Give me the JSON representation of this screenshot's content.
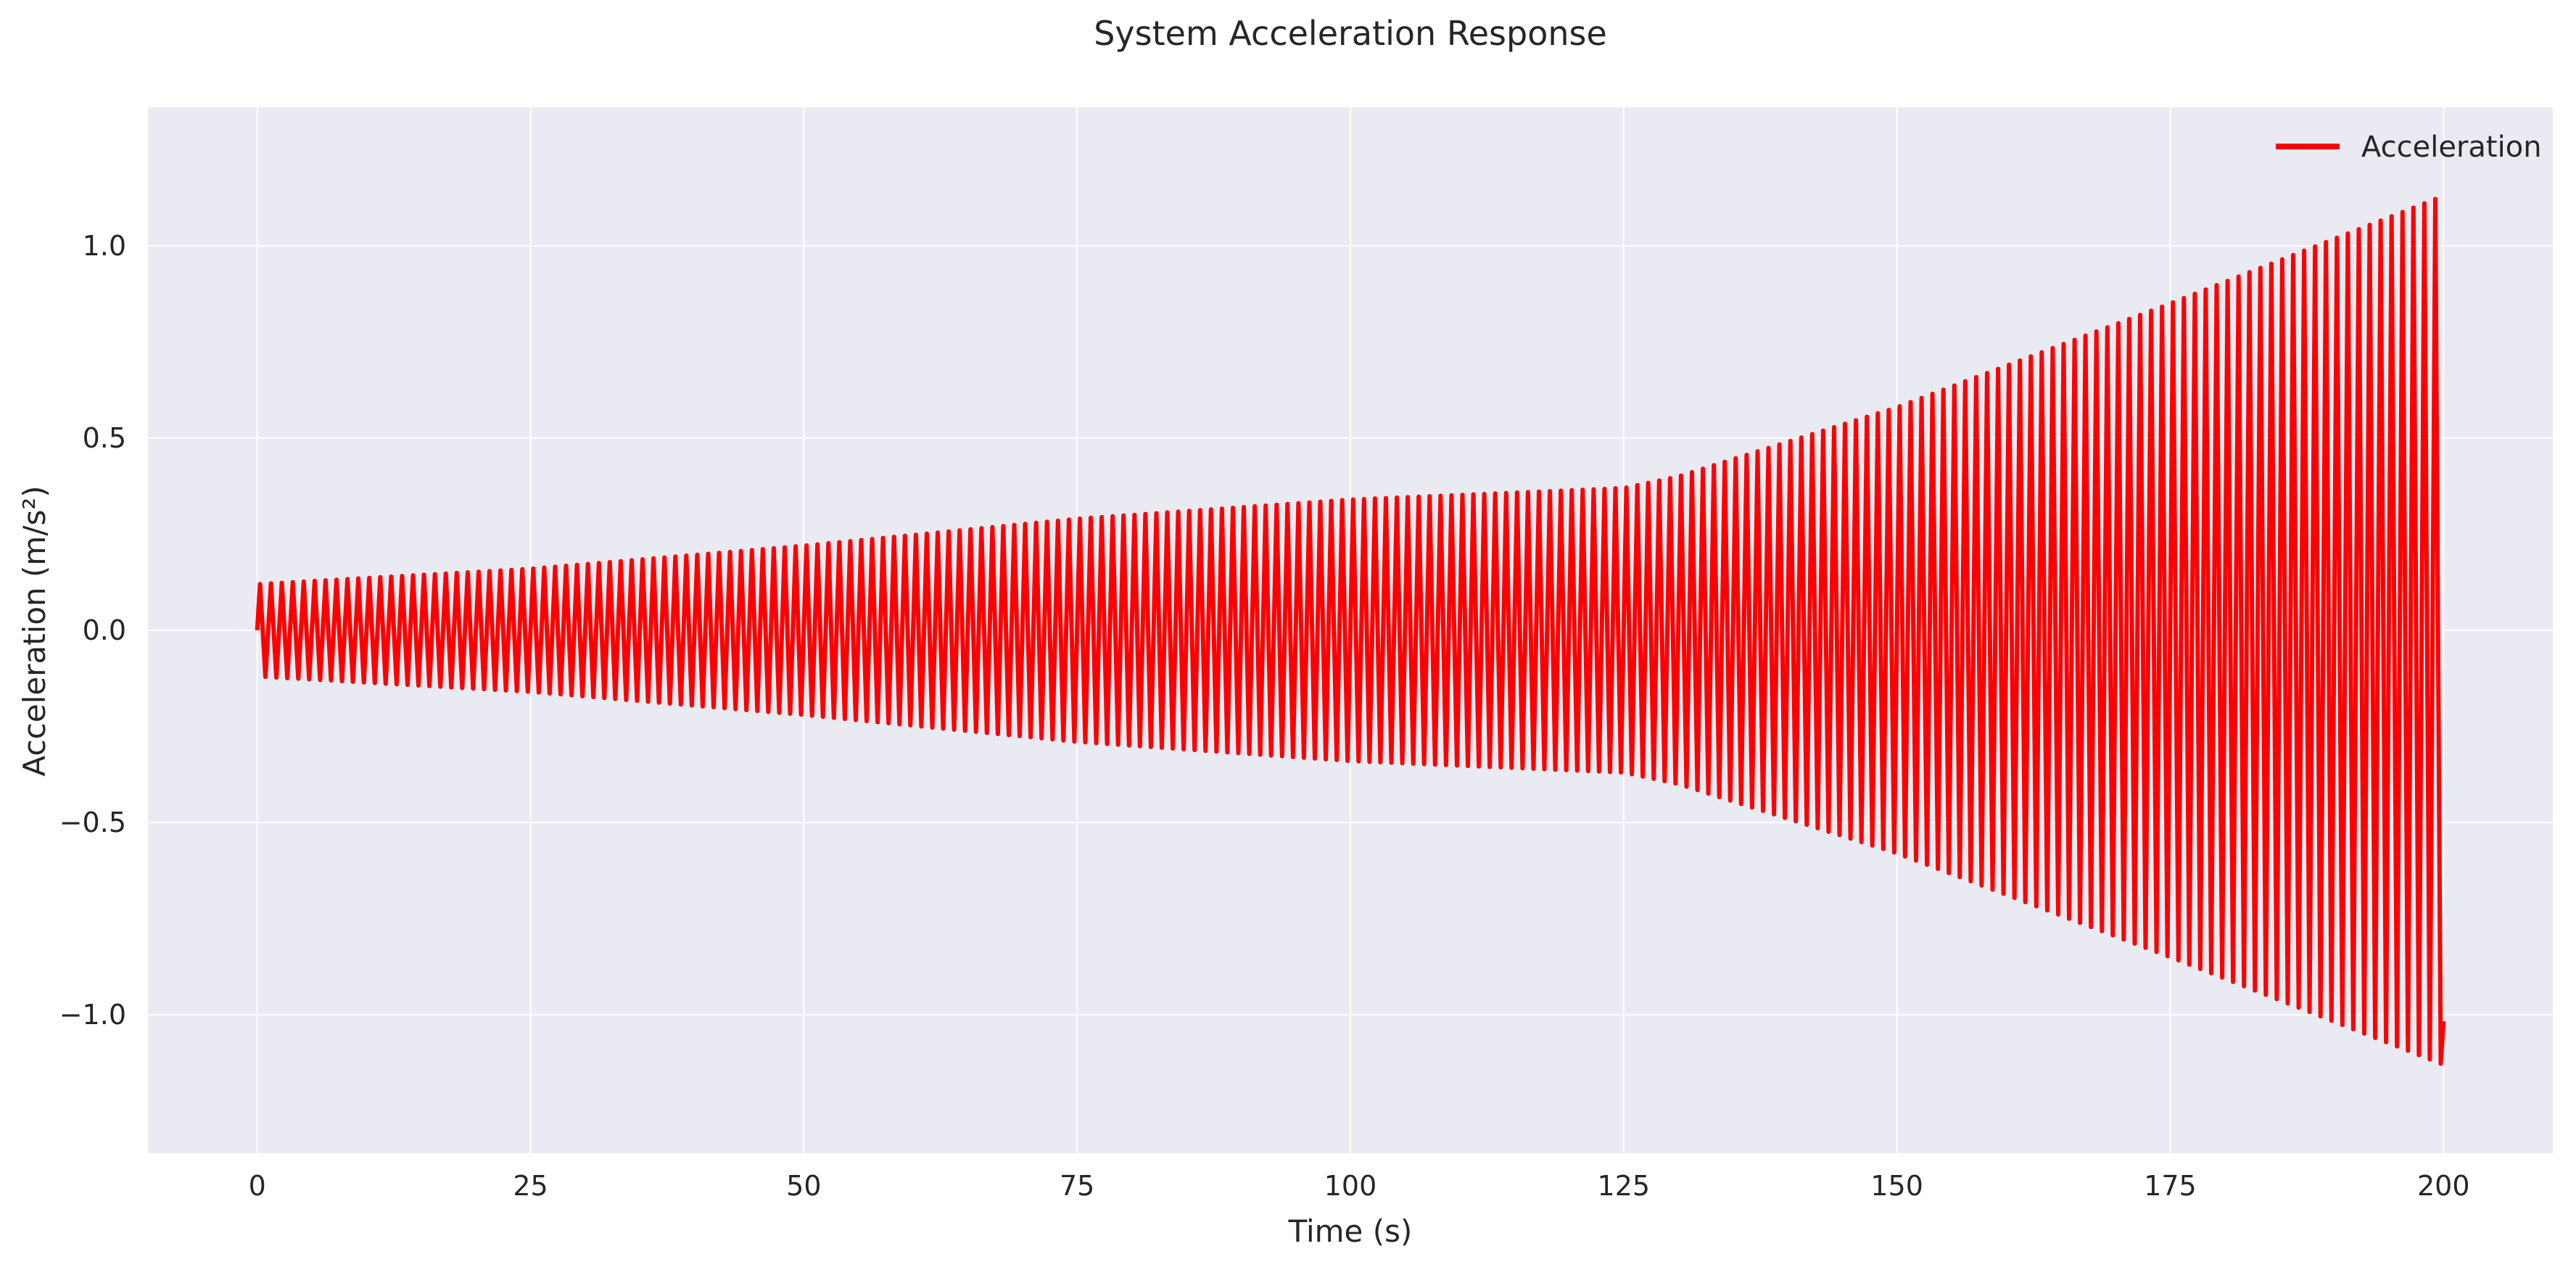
{
  "chart_data": {
    "type": "line",
    "title": "System Acceleration Response",
    "xlabel": "Time (s)",
    "ylabel": "Acceleration (m/s²)",
    "xlim": [
      -10,
      210
    ],
    "ylim": [
      -1.36,
      1.36
    ],
    "xticks": [
      0,
      25,
      50,
      75,
      100,
      125,
      150,
      175,
      200
    ],
    "xtick_labels": [
      "0",
      "25",
      "50",
      "75",
      "100",
      "125",
      "150",
      "175",
      "200"
    ],
    "yticks": [
      -1.0,
      -0.5,
      0.0,
      0.5,
      1.0
    ],
    "ytick_labels": [
      "−1.0",
      "−0.5",
      "0.0",
      "0.5",
      "1.0"
    ],
    "grid": true,
    "legend_position": "top-right",
    "oscillation_period_s": 1.0,
    "series": [
      {
        "name": "Acceleration",
        "color": "#ff0000",
        "envelope": {
          "t": [
            0,
            25,
            50,
            75,
            100,
            125,
            130,
            150,
            175,
            200
          ],
          "amplitude": [
            0.12,
            0.16,
            0.22,
            0.29,
            0.34,
            0.37,
            0.4,
            0.58,
            0.85,
            1.13
          ]
        }
      }
    ],
    "background_color": "#eaeaf2",
    "grid_color": "#ffffff"
  }
}
